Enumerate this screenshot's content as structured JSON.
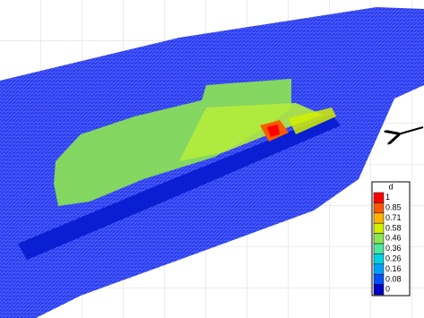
{
  "legend": {
    "title": "d",
    "entries": [
      {
        "label": "1",
        "color": "#ff0000"
      },
      {
        "label": "0.85",
        "color": "#ff5a00"
      },
      {
        "label": "0.71",
        "color": "#ffb400"
      },
      {
        "label": "0.58",
        "color": "#d2f000"
      },
      {
        "label": "0.46",
        "color": "#8ce650"
      },
      {
        "label": "0.36",
        "color": "#50e6a0"
      },
      {
        "label": "0.26",
        "color": "#00d2e6"
      },
      {
        "label": "0.16",
        "color": "#00a0ff"
      },
      {
        "label": "0.08",
        "color": "#0050ff"
      },
      {
        "label": "0",
        "color": "#0000c8"
      }
    ]
  }
}
